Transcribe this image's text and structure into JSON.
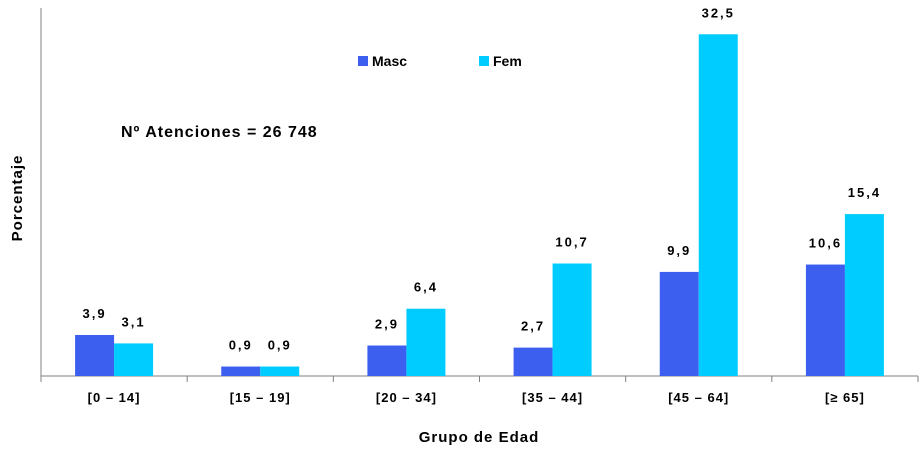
{
  "chart_data": {
    "type": "bar",
    "categories": [
      "[0 – 14]",
      "[15 – 19]",
      "[20 – 34]",
      "[35 – 44]",
      "[45 – 64]",
      "[≥ 65]"
    ],
    "series": [
      {
        "name": "Masc",
        "color": "#3c5ff0",
        "values": [
          3.9,
          0.9,
          2.9,
          2.7,
          9.9,
          10.6
        ],
        "labels": [
          "3,9",
          "0,9",
          "2,9",
          "2,7",
          "9,9",
          "10,6"
        ]
      },
      {
        "name": "Fem",
        "color": "#00ccff",
        "values": [
          3.1,
          0.9,
          6.4,
          10.7,
          32.5,
          15.4
        ],
        "labels": [
          "3,1",
          "0,9",
          "6,4",
          "10,7",
          "32,5",
          "15,4"
        ]
      }
    ],
    "xlabel": "Grupo de Edad",
    "ylabel": "Porcentaje",
    "annotation": "Nº Atenciones = 26 748",
    "ylim": [
      0,
      35
    ],
    "grid": false,
    "legend": "top-center"
  }
}
